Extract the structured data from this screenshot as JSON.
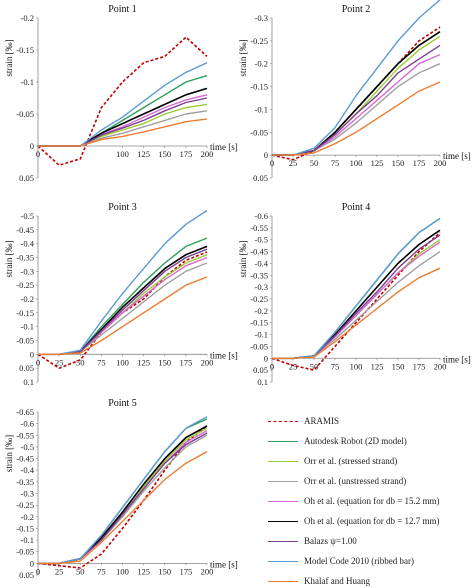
{
  "chart_data": [
    {
      "type": "line",
      "title": "Point 1",
      "xlabel": "time [s]",
      "ylabel": "strain [‰]",
      "xlim": [
        0,
        200
      ],
      "ylim": [
        0.05,
        -0.2
      ],
      "x_ticks": [
        "0",
        "100",
        "125",
        "150",
        "175",
        "200"
      ],
      "x_tick_values": [
        0,
        100,
        125,
        150,
        175,
        200
      ],
      "y_ticks": [
        "-0.2",
        "-0.15",
        "-0.1",
        "-0.05",
        "0",
        "0.05"
      ],
      "y_tick_values": [
        -0.2,
        -0.15,
        -0.1,
        -0.05,
        0,
        0.05
      ],
      "x": [
        0,
        25,
        50,
        75,
        100,
        125,
        150,
        175,
        200
      ],
      "series": [
        {
          "name": "ARAMIS",
          "values": [
            0,
            0.03,
            0.02,
            -0.06,
            -0.1,
            -0.13,
            -0.14,
            -0.17,
            -0.14
          ]
        },
        {
          "name": "Autodesk Robot (2D model)",
          "values": [
            0,
            0,
            0,
            -0.02,
            -0.04,
            -0.06,
            -0.08,
            -0.1,
            -0.11
          ]
        },
        {
          "name": "Orr et al. (stressed strand)",
          "values": [
            0,
            0,
            0,
            -0.015,
            -0.025,
            -0.035,
            -0.05,
            -0.06,
            -0.065
          ]
        },
        {
          "name": "Orr et al. (unstressed strand)",
          "values": [
            0,
            0,
            0,
            -0.012,
            -0.02,
            -0.03,
            -0.04,
            -0.05,
            -0.055
          ]
        },
        {
          "name": "Oh et al. (equation for db = 15.2 mm)",
          "values": [
            0,
            0,
            0,
            -0.018,
            -0.03,
            -0.045,
            -0.06,
            -0.072,
            -0.08
          ]
        },
        {
          "name": "Oh et al. (equation for db = 12.7 mm)",
          "values": [
            0,
            0,
            0,
            -0.02,
            -0.035,
            -0.05,
            -0.065,
            -0.08,
            -0.09
          ]
        },
        {
          "name": "Balazs ψ=1.00",
          "values": [
            0,
            0,
            0,
            -0.017,
            -0.028,
            -0.04,
            -0.055,
            -0.068,
            -0.075
          ]
        },
        {
          "name": "Model Code 2010 (ribbed bar)",
          "values": [
            0,
            0,
            0,
            -0.025,
            -0.045,
            -0.07,
            -0.095,
            -0.115,
            -0.13
          ]
        },
        {
          "name": "Khalaf and Huang",
          "values": [
            0,
            0,
            0,
            -0.01,
            -0.015,
            -0.022,
            -0.03,
            -0.038,
            -0.042
          ]
        }
      ]
    },
    {
      "type": "line",
      "title": "Point 2",
      "xlabel": "time [s]",
      "ylabel": "strain [‰]",
      "xlim": [
        0,
        200
      ],
      "ylim": [
        0.05,
        -0.3
      ],
      "x_ticks": [
        "0",
        "25",
        "50",
        "75",
        "100",
        "125",
        "150",
        "175",
        "200"
      ],
      "x_tick_values": [
        0,
        25,
        50,
        75,
        100,
        125,
        150,
        175,
        200
      ],
      "y_ticks": [
        "-0.3",
        "-0.25",
        "-0.2",
        "-0.15",
        "-0.1",
        "-0.05",
        "0",
        "0.05"
      ],
      "y_tick_values": [
        -0.3,
        -0.25,
        -0.2,
        -0.15,
        -0.1,
        -0.05,
        0,
        0.05
      ],
      "x": [
        0,
        25,
        50,
        75,
        100,
        125,
        150,
        175,
        200
      ],
      "series": [
        {
          "name": "ARAMIS",
          "values": [
            0,
            0.01,
            -0.01,
            -0.05,
            -0.1,
            -0.15,
            -0.2,
            -0.25,
            -0.28
          ]
        },
        {
          "name": "Autodesk Robot (2D model)",
          "values": [
            0,
            0,
            -0.01,
            -0.05,
            -0.1,
            -0.15,
            -0.2,
            -0.24,
            -0.27
          ]
        },
        {
          "name": "Orr et al. (stressed strand)",
          "values": [
            0,
            0,
            -0.01,
            -0.045,
            -0.09,
            -0.14,
            -0.19,
            -0.23,
            -0.26
          ]
        },
        {
          "name": "Orr et al. (unstressed strand)",
          "values": [
            0,
            0,
            -0.01,
            -0.035,
            -0.07,
            -0.11,
            -0.15,
            -0.18,
            -0.2
          ]
        },
        {
          "name": "Oh et al. (equation for db = 15.2 mm)",
          "values": [
            0,
            0,
            -0.01,
            -0.04,
            -0.08,
            -0.12,
            -0.16,
            -0.2,
            -0.22
          ]
        },
        {
          "name": "Oh et al. (equation for db = 12.7 mm)",
          "values": [
            0,
            0,
            -0.01,
            -0.05,
            -0.1,
            -0.15,
            -0.2,
            -0.24,
            -0.27
          ]
        },
        {
          "name": "Balazs ψ=1.00",
          "values": [
            0,
            0,
            -0.01,
            -0.045,
            -0.09,
            -0.13,
            -0.18,
            -0.21,
            -0.24
          ]
        },
        {
          "name": "Model Code 2010 (ribbed bar)",
          "values": [
            0,
            0,
            -0.015,
            -0.06,
            -0.13,
            -0.19,
            -0.25,
            -0.3,
            -0.34
          ]
        },
        {
          "name": "Khalaf and Huang",
          "values": [
            0,
            0,
            -0.005,
            -0.025,
            -0.05,
            -0.08,
            -0.11,
            -0.14,
            -0.16
          ]
        }
      ]
    },
    {
      "type": "line",
      "title": "Point 3",
      "xlabel": "time [s]",
      "ylabel": "strain [‰]",
      "xlim": [
        0,
        200
      ],
      "ylim": [
        0.1,
        -0.5
      ],
      "x_ticks": [
        "0",
        "25",
        "50",
        "75",
        "100",
        "125",
        "150",
        "175",
        "200"
      ],
      "x_tick_values": [
        0,
        25,
        50,
        75,
        100,
        125,
        150,
        175,
        200
      ],
      "y_ticks": [
        "-0.5",
        "-0.45",
        "-0.4",
        "-0.35",
        "-0.3",
        "-0.25",
        "-0.2",
        "-0.15",
        "-0.1",
        "-0.05",
        "0",
        "0.05",
        "0.1"
      ],
      "y_tick_values": [
        -0.5,
        -0.45,
        -0.4,
        -0.35,
        -0.3,
        -0.25,
        -0.2,
        -0.15,
        -0.1,
        -0.05,
        0,
        0.05,
        0.1
      ],
      "x": [
        0,
        25,
        50,
        75,
        100,
        125,
        150,
        175,
        200
      ],
      "series": [
        {
          "name": "ARAMIS",
          "values": [
            0,
            0.05,
            0.02,
            -0.08,
            -0.15,
            -0.2,
            -0.28,
            -0.34,
            -0.37
          ]
        },
        {
          "name": "Autodesk Robot (2D model)",
          "values": [
            0,
            0,
            -0.01,
            -0.1,
            -0.18,
            -0.26,
            -0.33,
            -0.39,
            -0.42
          ]
        },
        {
          "name": "Orr et al. (stressed strand)",
          "values": [
            0,
            0,
            -0.01,
            -0.08,
            -0.15,
            -0.22,
            -0.28,
            -0.33,
            -0.36
          ]
        },
        {
          "name": "Orr et al. (unstressed strand)",
          "values": [
            0,
            0,
            -0.01,
            -0.07,
            -0.13,
            -0.19,
            -0.25,
            -0.3,
            -0.33
          ]
        },
        {
          "name": "Oh et al. (equation for db = 15.2 mm)",
          "values": [
            0,
            0,
            -0.01,
            -0.08,
            -0.15,
            -0.21,
            -0.27,
            -0.32,
            -0.35
          ]
        },
        {
          "name": "Oh et al. (equation for db = 12.7 mm)",
          "values": [
            0,
            0,
            -0.01,
            -0.09,
            -0.17,
            -0.24,
            -0.31,
            -0.36,
            -0.39
          ]
        },
        {
          "name": "Balazs ψ=1.00",
          "values": [
            0,
            0,
            -0.01,
            -0.085,
            -0.16,
            -0.23,
            -0.3,
            -0.35,
            -0.38
          ]
        },
        {
          "name": "Model Code 2010 (ribbed bar)",
          "values": [
            0,
            0,
            -0.015,
            -0.12,
            -0.22,
            -0.31,
            -0.4,
            -0.47,
            -0.52
          ]
        },
        {
          "name": "Khalaf and Huang",
          "values": [
            0,
            0,
            -0.005,
            -0.05,
            -0.1,
            -0.15,
            -0.2,
            -0.25,
            -0.28
          ]
        }
      ]
    },
    {
      "type": "line",
      "title": "Point 4",
      "xlabel": "time [s]",
      "ylabel": "strain [‰]",
      "xlim": [
        0,
        200
      ],
      "ylim": [
        0.1,
        -0.6
      ],
      "x_ticks": [
        "0",
        "25",
        "50",
        "75",
        "100",
        "125",
        "150",
        "175",
        "200"
      ],
      "x_tick_values": [
        0,
        25,
        50,
        75,
        100,
        125,
        150,
        175,
        200
      ],
      "y_ticks": [
        "-0.6",
        "-0.55",
        "-0.5",
        "-0.45",
        "-0.4",
        "-0.35",
        "-0.3",
        "-0.25",
        "-0.2",
        "-0.15",
        "-0.1",
        "-0.05",
        "0",
        "0.05",
        "0.1"
      ],
      "y_tick_values": [
        -0.6,
        -0.55,
        -0.5,
        -0.45,
        -0.4,
        -0.35,
        -0.3,
        -0.25,
        -0.2,
        -0.15,
        -0.1,
        -0.05,
        0,
        0.05,
        0.1
      ],
      "x": [
        0,
        25,
        50,
        75,
        100,
        125,
        150,
        175,
        200
      ],
      "series": [
        {
          "name": "ARAMIS",
          "values": [
            0,
            0.03,
            0.05,
            -0.05,
            -0.15,
            -0.25,
            -0.35,
            -0.45,
            -0.53
          ]
        },
        {
          "name": "Autodesk Robot (2D model)",
          "values": [
            0,
            0,
            -0.01,
            -0.11,
            -0.22,
            -0.33,
            -0.44,
            -0.53,
            -0.59
          ]
        },
        {
          "name": "Orr et al. (stressed strand)",
          "values": [
            0,
            0,
            -0.01,
            -0.09,
            -0.18,
            -0.27,
            -0.36,
            -0.44,
            -0.5
          ]
        },
        {
          "name": "Orr et al. (unstressed strand)",
          "values": [
            0,
            0,
            -0.01,
            -0.08,
            -0.16,
            -0.24,
            -0.32,
            -0.39,
            -0.45
          ]
        },
        {
          "name": "Oh et al. (equation for db = 15.2 mm)",
          "values": [
            0,
            0,
            -0.01,
            -0.09,
            -0.18,
            -0.27,
            -0.36,
            -0.43,
            -0.49
          ]
        },
        {
          "name": "Oh et al. (equation for db = 12.7 mm)",
          "values": [
            0,
            0,
            -0.01,
            -0.1,
            -0.2,
            -0.3,
            -0.4,
            -0.48,
            -0.54
          ]
        },
        {
          "name": "Balazs ψ=1.00",
          "values": [
            0,
            0,
            -0.01,
            -0.095,
            -0.19,
            -0.28,
            -0.38,
            -0.46,
            -0.52
          ]
        },
        {
          "name": "Model Code 2010 (ribbed bar)",
          "values": [
            0,
            0,
            -0.01,
            -0.11,
            -0.22,
            -0.33,
            -0.44,
            -0.53,
            -0.59
          ]
        },
        {
          "name": "Khalaf and Huang",
          "values": [
            0,
            0,
            -0.005,
            -0.07,
            -0.14,
            -0.21,
            -0.28,
            -0.34,
            -0.38
          ]
        }
      ]
    },
    {
      "type": "line",
      "title": "Point 5",
      "xlabel": "time [s]",
      "ylabel": "strain [‰]",
      "xlim": [
        0,
        200
      ],
      "ylim": [
        0.05,
        -0.65
      ],
      "x_ticks": [
        "0",
        "25",
        "50",
        "75",
        "100",
        "125",
        "150",
        "175",
        "200"
      ],
      "x_tick_values": [
        0,
        25,
        50,
        75,
        100,
        125,
        150,
        175,
        200
      ],
      "y_ticks": [
        "-0.65",
        "-0.6",
        "-0.55",
        "-0.5",
        "-0.45",
        "-0.4",
        "-0.35",
        "-0.3",
        "-0.25",
        "-0.2",
        "-0.15",
        "-0.1",
        "-0.05",
        "0",
        "0.05"
      ],
      "y_tick_values": [
        -0.65,
        -0.6,
        -0.55,
        -0.5,
        -0.45,
        -0.4,
        -0.35,
        -0.3,
        -0.25,
        -0.2,
        -0.15,
        -0.1,
        -0.05,
        0,
        0.05
      ],
      "x": [
        0,
        25,
        50,
        75,
        100,
        125,
        150,
        175,
        200
      ],
      "series": [
        {
          "name": "ARAMIS",
          "values": [
            0,
            0.01,
            0.02,
            -0.04,
            -0.15,
            -0.27,
            -0.4,
            -0.52,
            -0.59
          ]
        },
        {
          "name": "Autodesk Robot (2D model)",
          "values": [
            0,
            0,
            -0.02,
            -0.12,
            -0.24,
            -0.36,
            -0.48,
            -0.58,
            -0.62
          ]
        },
        {
          "name": "Orr et al. (stressed strand)",
          "values": [
            0,
            0,
            -0.02,
            -0.11,
            -0.22,
            -0.33,
            -0.44,
            -0.53,
            -0.58
          ]
        },
        {
          "name": "Orr et al. (unstressed strand)",
          "values": [
            0,
            0,
            -0.02,
            -0.1,
            -0.2,
            -0.31,
            -0.41,
            -0.5,
            -0.55
          ]
        },
        {
          "name": "Oh et al. (equation for db = 15.2 mm)",
          "values": [
            0,
            0,
            -0.02,
            -0.11,
            -0.21,
            -0.32,
            -0.43,
            -0.52,
            -0.57
          ]
        },
        {
          "name": "Oh et al. (equation for db = 12.7 mm)",
          "values": [
            0,
            0,
            -0.02,
            -0.11,
            -0.22,
            -0.34,
            -0.45,
            -0.54,
            -0.59
          ]
        },
        {
          "name": "Balazs ψ=1.00",
          "values": [
            0,
            0,
            -0.02,
            -0.1,
            -0.21,
            -0.32,
            -0.43,
            -0.51,
            -0.56
          ]
        },
        {
          "name": "Model Code 2010 (ribbed bar)",
          "values": [
            0,
            0,
            -0.02,
            -0.12,
            -0.24,
            -0.36,
            -0.48,
            -0.58,
            -0.63
          ]
        },
        {
          "name": "Khalaf and Huang",
          "values": [
            0,
            0,
            -0.01,
            -0.09,
            -0.18,
            -0.27,
            -0.36,
            -0.43,
            -0.48
          ]
        }
      ]
    }
  ],
  "legend": {
    "items": [
      {
        "label": "ARAMIS",
        "color": "#c00000",
        "dash": "3,2",
        "width": 1.6
      },
      {
        "label": "Autodesk Robot (2D model)",
        "color": "#2e9e5b",
        "dash": "",
        "width": 1.4
      },
      {
        "label": "Orr et al. (stressed strand)",
        "color": "#9acd32",
        "dash": "",
        "width": 1.4
      },
      {
        "label": "Orr et al. (unstressed strand)",
        "color": "#a0a0a0",
        "dash": "",
        "width": 1.4
      },
      {
        "label": "Oh et al. (equation for db = 15.2 mm)",
        "color": "#d966d6",
        "dash": "",
        "width": 1.4
      },
      {
        "label": "Oh et al. (equation for db = 12.7 mm)",
        "color": "#000000",
        "dash": "",
        "width": 1.6
      },
      {
        "label": "Balazs ψ=1.00",
        "color": "#7b3f8f",
        "dash": "",
        "width": 1.4
      },
      {
        "label": "Model Code 2010 (ribbed bar)",
        "color": "#5b9bd5",
        "dash": "",
        "width": 1.4
      },
      {
        "label": "Khalaf and Huang",
        "color": "#ed7d31",
        "dash": "",
        "width": 1.4
      }
    ]
  }
}
